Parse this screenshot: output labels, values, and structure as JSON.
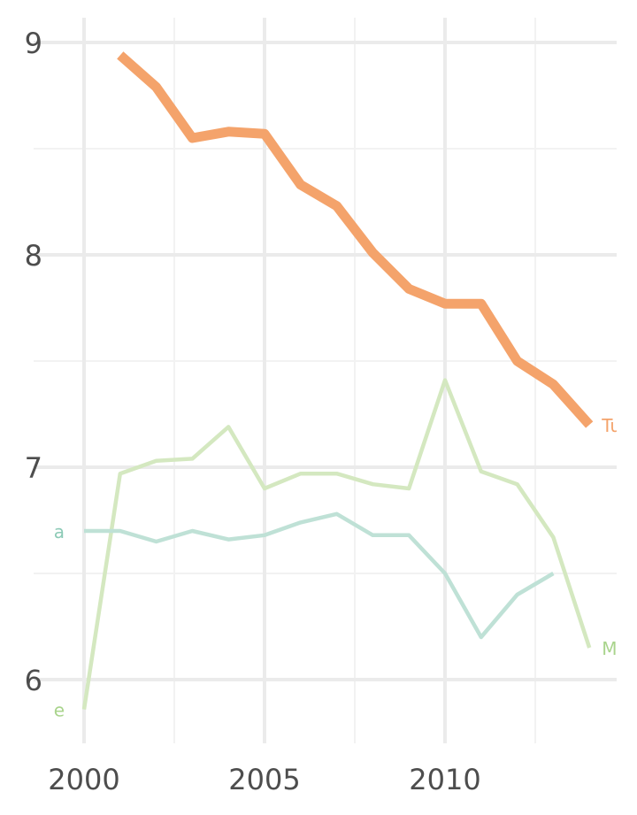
{
  "chart_data": {
    "type": "line",
    "title": "",
    "xlabel": "",
    "ylabel": "",
    "xlim": [
      2000,
      2014
    ],
    "ylim": [
      5.7,
      9.2
    ],
    "grid": true,
    "legend": "none (series labels placed at line ends, clipped by plot area)",
    "x_ticks": [
      2000,
      2005,
      2010
    ],
    "y_ticks": [
      6,
      7,
      8,
      9
    ],
    "series": [
      {
        "name": "",
        "end_label": "Tu",
        "label_at": "end",
        "color": "#f4a36b",
        "line_width": "thick",
        "points": [
          [
            2001,
            8.94
          ],
          [
            2002,
            8.79
          ],
          [
            2003,
            8.55
          ],
          [
            2004,
            8.58
          ],
          [
            2005,
            8.57
          ],
          [
            2006,
            8.33
          ],
          [
            2007,
            8.23
          ],
          [
            2008,
            8.01
          ],
          [
            2009,
            7.84
          ],
          [
            2010,
            7.77
          ],
          [
            2011,
            7.77
          ],
          [
            2012,
            7.5
          ],
          [
            2013,
            7.39
          ],
          [
            2014,
            7.2
          ]
        ]
      },
      {
        "name": "",
        "start_label": "e",
        "end_label": "M",
        "label_at": "both",
        "color": "#d4e8c0",
        "line_width": "thin",
        "points": [
          [
            2000,
            5.86
          ],
          [
            2001,
            6.97
          ],
          [
            2002,
            7.03
          ],
          [
            2003,
            7.04
          ],
          [
            2004,
            7.19
          ],
          [
            2005,
            6.9
          ],
          [
            2006,
            6.97
          ],
          [
            2007,
            6.97
          ],
          [
            2008,
            6.92
          ],
          [
            2009,
            6.9
          ],
          [
            2010,
            7.41
          ],
          [
            2011,
            6.98
          ],
          [
            2012,
            6.92
          ],
          [
            2013,
            6.67
          ],
          [
            2014,
            6.15
          ]
        ]
      },
      {
        "name": "",
        "start_label": "a",
        "label_at": "start",
        "color": "#bfe1d6",
        "line_width": "thin",
        "points": [
          [
            2000,
            6.7
          ],
          [
            2001,
            6.7
          ],
          [
            2002,
            6.65
          ],
          [
            2003,
            6.7
          ],
          [
            2004,
            6.66
          ],
          [
            2005,
            6.68
          ],
          [
            2006,
            6.74
          ],
          [
            2007,
            6.78
          ],
          [
            2008,
            6.68
          ],
          [
            2009,
            6.68
          ],
          [
            2010,
            6.5
          ],
          [
            2011,
            6.2
          ],
          [
            2012,
            6.4
          ],
          [
            2013,
            6.5
          ]
        ]
      }
    ]
  },
  "colors": {
    "grid_major": "#ebebeb",
    "grid_minor": "#f2f2f2",
    "tick_text": "#4d4d4d",
    "label_red": "#f4a36b",
    "label_green": "#a9d48c",
    "label_teal": "#8ccab6"
  }
}
